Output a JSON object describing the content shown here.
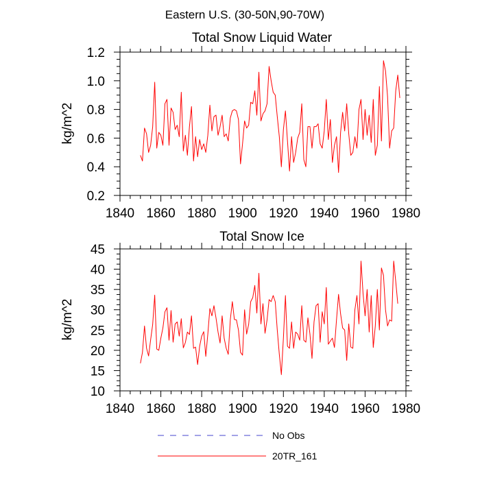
{
  "figure_title": "Eastern U.S. (30-50N,90-70W)",
  "chart_data": [
    {
      "type": "line",
      "title": "Total Snow Liquid Water",
      "xlabel": "",
      "ylabel": "kg/m^2",
      "xlim": [
        1840,
        1980
      ],
      "ylim": [
        0.2,
        1.2
      ],
      "xticks": [
        1840,
        1860,
        1880,
        1900,
        1920,
        1940,
        1960,
        1980
      ],
      "yticks": [
        0.2,
        0.4,
        0.6,
        0.8,
        1.0,
        1.2
      ],
      "ytick_labels": [
        "0.2",
        "0.4",
        "0.6",
        "0.8",
        "1.0",
        "1.2"
      ],
      "x_start": 1850,
      "series": [
        {
          "name": "20TR_161",
          "color": "#ff0000",
          "values": [
            0.48,
            0.44,
            0.67,
            0.63,
            0.5,
            0.55,
            0.68,
            0.99,
            0.53,
            0.64,
            0.62,
            0.55,
            0.84,
            0.87,
            0.55,
            0.81,
            0.78,
            0.66,
            0.69,
            0.61,
            0.92,
            0.51,
            0.62,
            0.48,
            0.68,
            0.82,
            0.44,
            0.61,
            0.47,
            0.59,
            0.52,
            0.56,
            0.5,
            0.62,
            0.83,
            0.65,
            0.75,
            0.76,
            0.62,
            0.68,
            0.76,
            0.61,
            0.63,
            0.58,
            0.74,
            0.79,
            0.8,
            0.79,
            0.73,
            0.42,
            0.56,
            0.72,
            0.67,
            0.69,
            0.85,
            0.84,
            0.93,
            0.76,
            1.06,
            0.72,
            0.77,
            0.79,
            0.84,
            1.1,
            1.0,
            0.92,
            0.9,
            0.75,
            0.61,
            0.4,
            0.66,
            0.79,
            0.58,
            0.37,
            0.61,
            0.43,
            0.5,
            0.6,
            0.64,
            0.84,
            0.45,
            0.4,
            0.68,
            0.68,
            0.53,
            0.68,
            0.68,
            0.7,
            0.56,
            0.53,
            0.65,
            0.87,
            0.59,
            0.73,
            0.43,
            0.55,
            0.61,
            0.36,
            0.64,
            0.78,
            0.65,
            0.84,
            0.63,
            0.48,
            0.5,
            0.61,
            0.53,
            0.8,
            0.87,
            0.59,
            0.8,
            0.62,
            0.76,
            0.57,
            0.87,
            0.48,
            0.55,
            0.96,
            0.58,
            1.14,
            1.07,
            0.89,
            0.53,
            0.65,
            0.67,
            0.93,
            1.04,
            0.88
          ]
        }
      ]
    },
    {
      "type": "line",
      "title": "Total Snow Ice",
      "xlabel": "",
      "ylabel": "kg/m^2",
      "xlim": [
        1840,
        1980
      ],
      "ylim": [
        10,
        45
      ],
      "xticks": [
        1840,
        1860,
        1880,
        1900,
        1920,
        1940,
        1960,
        1980
      ],
      "yticks": [
        10,
        15,
        20,
        25,
        30,
        35,
        40,
        45
      ],
      "ytick_labels": [
        "10",
        "15",
        "20",
        "25",
        "30",
        "35",
        "40",
        "45"
      ],
      "x_start": 1850,
      "series": [
        {
          "name": "20TR_161",
          "color": "#ff0000",
          "values": [
            16.8,
            19.5,
            26.0,
            20.5,
            18.6,
            22.6,
            26.4,
            33.6,
            20.3,
            20.0,
            23.0,
            25.5,
            29.5,
            30.5,
            22.5,
            29.8,
            22.0,
            26.5,
            27.0,
            23.5,
            27.8,
            20.6,
            21.9,
            24.5,
            23.9,
            28.5,
            20.5,
            20.8,
            16.5,
            21.0,
            23.5,
            24.6,
            18.5,
            24.0,
            30.3,
            28.5,
            31.0,
            28.0,
            24.5,
            21.8,
            28.5,
            23.0,
            20.5,
            19.0,
            27.5,
            32.0,
            27.6,
            27.5,
            25.0,
            19.5,
            18.8,
            30.0,
            24.0,
            26.4,
            32.0,
            33.0,
            36.0,
            29.2,
            39.0,
            26.5,
            31.5,
            24.2,
            27.5,
            32.5,
            32.0,
            33.5,
            32.0,
            25.0,
            19.0,
            14.0,
            23.0,
            33.5,
            21.0,
            20.5,
            27.0,
            20.5,
            24.5,
            24.0,
            22.5,
            31.0,
            22.5,
            22.0,
            28.0,
            24.0,
            18.0,
            27.0,
            31.0,
            31.5,
            22.0,
            29.5,
            26.5,
            35.5,
            21.5,
            22.3,
            23.0,
            20.7,
            27.5,
            33.8,
            29.0,
            25.5,
            25.0,
            17.5,
            26.5,
            20.8,
            20.5,
            30.0,
            33.5,
            26.5,
            42.0,
            34.0,
            28.5,
            35.0,
            24.5,
            33.5,
            20.7,
            26.0,
            35.0,
            25.0,
            40.3,
            38.5,
            30.0,
            26.0,
            27.5,
            27.2,
            42.0,
            37.0,
            31.5
          ]
        }
      ]
    }
  ],
  "legend": {
    "items": [
      {
        "label": "No Obs",
        "color": "#4444cc",
        "style": "dashed"
      },
      {
        "label": "20TR_161",
        "color": "#ff0000",
        "style": "solid"
      }
    ]
  }
}
